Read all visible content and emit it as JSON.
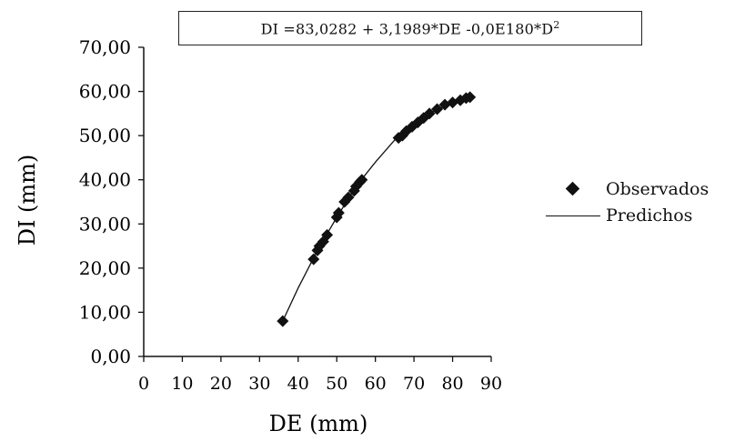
{
  "chart_data": {
    "type": "scatter",
    "equation": {
      "prefix": "DI =83,0282 + 3,1989*DE -0,0E180*D",
      "sup": "2"
    },
    "xlabel": "DE (mm)",
    "ylabel": "DI (mm)",
    "xlim": [
      0,
      90
    ],
    "ylim": [
      0,
      70
    ],
    "x_ticks": [
      "0",
      "10",
      "20",
      "30",
      "40",
      "50",
      "60",
      "70",
      "80",
      "90"
    ],
    "y_ticks": [
      "0,00",
      "10,00",
      "20,00",
      "30,00",
      "40,00",
      "50,00",
      "60,00",
      "70,00"
    ],
    "grid": false,
    "legend_position": "right",
    "series": [
      {
        "name": "Observados",
        "style": "markers",
        "marker": "diamond",
        "color": "#111111",
        "points": [
          [
            36.0,
            8.0
          ],
          [
            44.0,
            22.0
          ],
          [
            45.0,
            24.0
          ],
          [
            45.5,
            25.0
          ],
          [
            46.5,
            26.0
          ],
          [
            47.5,
            27.5
          ],
          [
            50.0,
            31.5
          ],
          [
            50.5,
            32.5
          ],
          [
            52.0,
            35.0
          ],
          [
            53.0,
            36.0
          ],
          [
            54.5,
            37.5
          ],
          [
            55.0,
            38.5
          ],
          [
            56.0,
            39.5
          ],
          [
            56.5,
            40.0
          ],
          [
            66.0,
            49.5
          ],
          [
            67.0,
            50.0
          ],
          [
            68.0,
            51.0
          ],
          [
            69.5,
            52.0
          ],
          [
            71.0,
            53.0
          ],
          [
            72.5,
            54.0
          ],
          [
            74.0,
            55.0
          ],
          [
            76.0,
            56.0
          ],
          [
            78.0,
            57.0
          ],
          [
            80.0,
            57.5
          ],
          [
            82.0,
            58.0
          ],
          [
            83.5,
            58.5
          ],
          [
            84.5,
            58.7
          ]
        ]
      },
      {
        "name": "Predichos",
        "style": "line",
        "color": "#111111",
        "points": [
          [
            36.0,
            8.0
          ],
          [
            40.0,
            15.5
          ],
          [
            45.0,
            24.0
          ],
          [
            50.0,
            31.5
          ],
          [
            55.0,
            38.5
          ],
          [
            60.0,
            44.0
          ],
          [
            65.0,
            49.0
          ],
          [
            70.0,
            52.5
          ],
          [
            75.0,
            55.5
          ],
          [
            80.0,
            57.5
          ],
          [
            85.0,
            58.9
          ]
        ]
      }
    ]
  }
}
